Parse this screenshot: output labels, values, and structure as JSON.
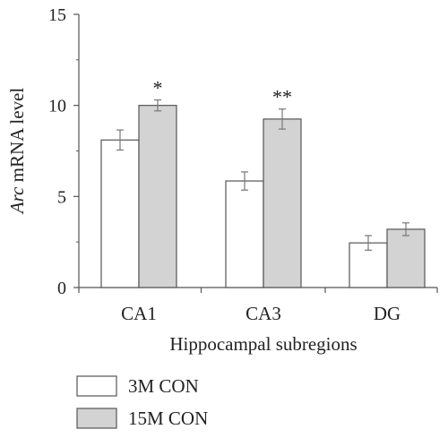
{
  "chart_data": {
    "type": "bar",
    "title": "",
    "xlabel": "Hippocampal subregions",
    "ylabel_italic": "Arc",
    "ylabel_rest": " mRNA level",
    "ylim": [
      0,
      15
    ],
    "yticks": [
      0,
      5,
      10,
      15
    ],
    "categories": [
      "CA1",
      "CA3",
      "DG"
    ],
    "series": [
      {
        "name": "3M CON",
        "values": [
          8.1,
          5.85,
          2.45
        ],
        "errors": [
          0.55,
          0.5,
          0.4
        ],
        "color": "#ffffff"
      },
      {
        "name": "15M CON",
        "values": [
          10.0,
          9.25,
          3.2
        ],
        "errors": [
          0.3,
          0.55,
          0.35
        ],
        "color": "#d3d3d3"
      }
    ],
    "significance": [
      "*",
      "**",
      ""
    ],
    "legend_position": "bottom-left",
    "grid": false
  }
}
